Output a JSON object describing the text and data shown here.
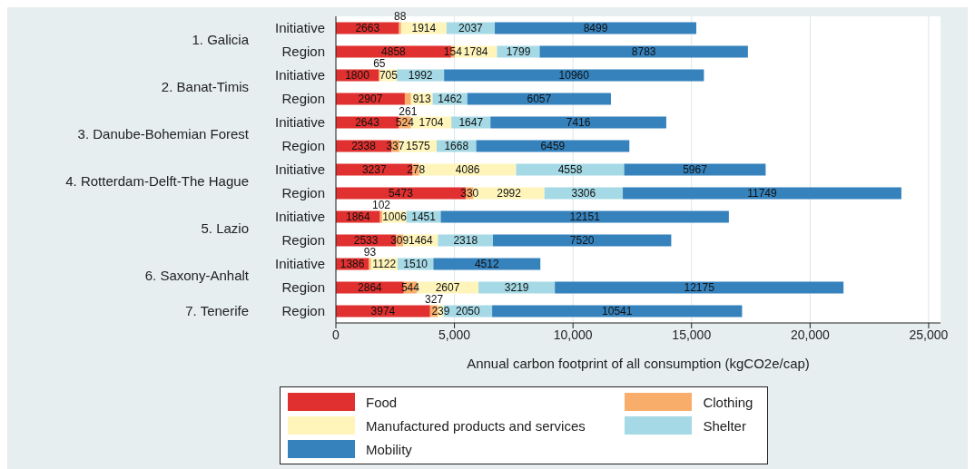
{
  "chart_data": {
    "type": "bar",
    "orientation": "horizontal",
    "stacked": true,
    "xlabel": "Annual carbon footprint of all consumption (kgCO2e/cap)",
    "categories": [
      "Initiative",
      "Region",
      "Initiative",
      "Region",
      "Initiative",
      "Region",
      "Initiative",
      "Region",
      "Initiative",
      "Region",
      "Initiative",
      "Region",
      "Region"
    ],
    "annotations": [
      "1. Galicia",
      "2. Banat-Timis",
      "3. Danube-Bohemian Forest",
      "4. Rotterdam-Delft-The Hague",
      "5. Lazio",
      "6. Saxony-Anhalt",
      "7. Tenerife"
    ],
    "series": [
      {
        "name": "Food",
        "color": "#e0302f",
        "values": [
          2663,
          4858,
          1800,
          2907,
          2643,
          2338,
          3237,
          5473,
          1864,
          2533,
          1386,
          2864,
          3974
        ]
      },
      {
        "name": "Clothing",
        "color": "#f9ad6a",
        "values": [
          88,
          154,
          65,
          261,
          524,
          337,
          278,
          330,
          102,
          309,
          93,
          544,
          327
        ]
      },
      {
        "name": "Manufactured products and services",
        "color": "#fff5bb",
        "values": [
          1914,
          1784,
          705,
          913,
          1704,
          1575,
          4086,
          2992,
          1006,
          1464,
          1122,
          2607,
          239
        ]
      },
      {
        "name": "Shelter",
        "color": "#a5d9e6",
        "values": [
          2037,
          1799,
          1992,
          1462,
          1647,
          1668,
          4558,
          3306,
          1451,
          2318,
          1510,
          3219,
          2050
        ]
      },
      {
        "name": "Mobility",
        "color": "#3582bd",
        "values": [
          8499,
          8783,
          10960,
          6057,
          7416,
          6459,
          5967,
          11749,
          12151,
          7520,
          4512,
          12175,
          10541
        ]
      }
    ],
    "xlim": [
      0,
      25500
    ],
    "xticks": [
      0,
      {
        "value": 5000,
        "label": "5,000"
      },
      {
        "value": 10000,
        "label": "10,000"
      },
      {
        "value": 15000,
        "label": "15,000"
      },
      {
        "value": 20000,
        "label": "20,000"
      },
      {
        "value": 25000,
        "label": "25,000"
      }
    ],
    "grid": "x",
    "legend": "bottom",
    "data_labels": true
  }
}
